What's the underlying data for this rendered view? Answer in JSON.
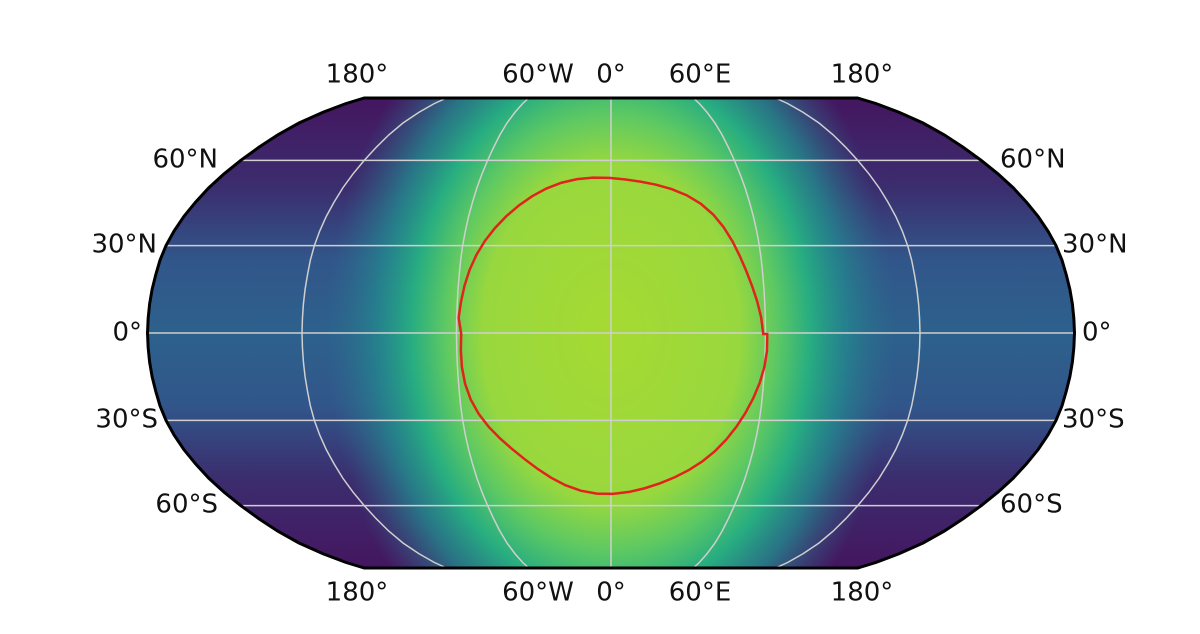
{
  "map": {
    "lon_labels_top": [
      "180°",
      "60°W",
      "0°",
      "60°E",
      "180°"
    ],
    "lon_labels_bottom": [
      "180°",
      "60°W",
      "0°",
      "60°E",
      "180°"
    ],
    "lat_labels_left": [
      "60°N",
      "30°N",
      "0°",
      "30°S",
      "60°S"
    ],
    "lat_labels_right": [
      "60°N",
      "30°N",
      "0°",
      "30°S",
      "60°S"
    ]
  }
}
